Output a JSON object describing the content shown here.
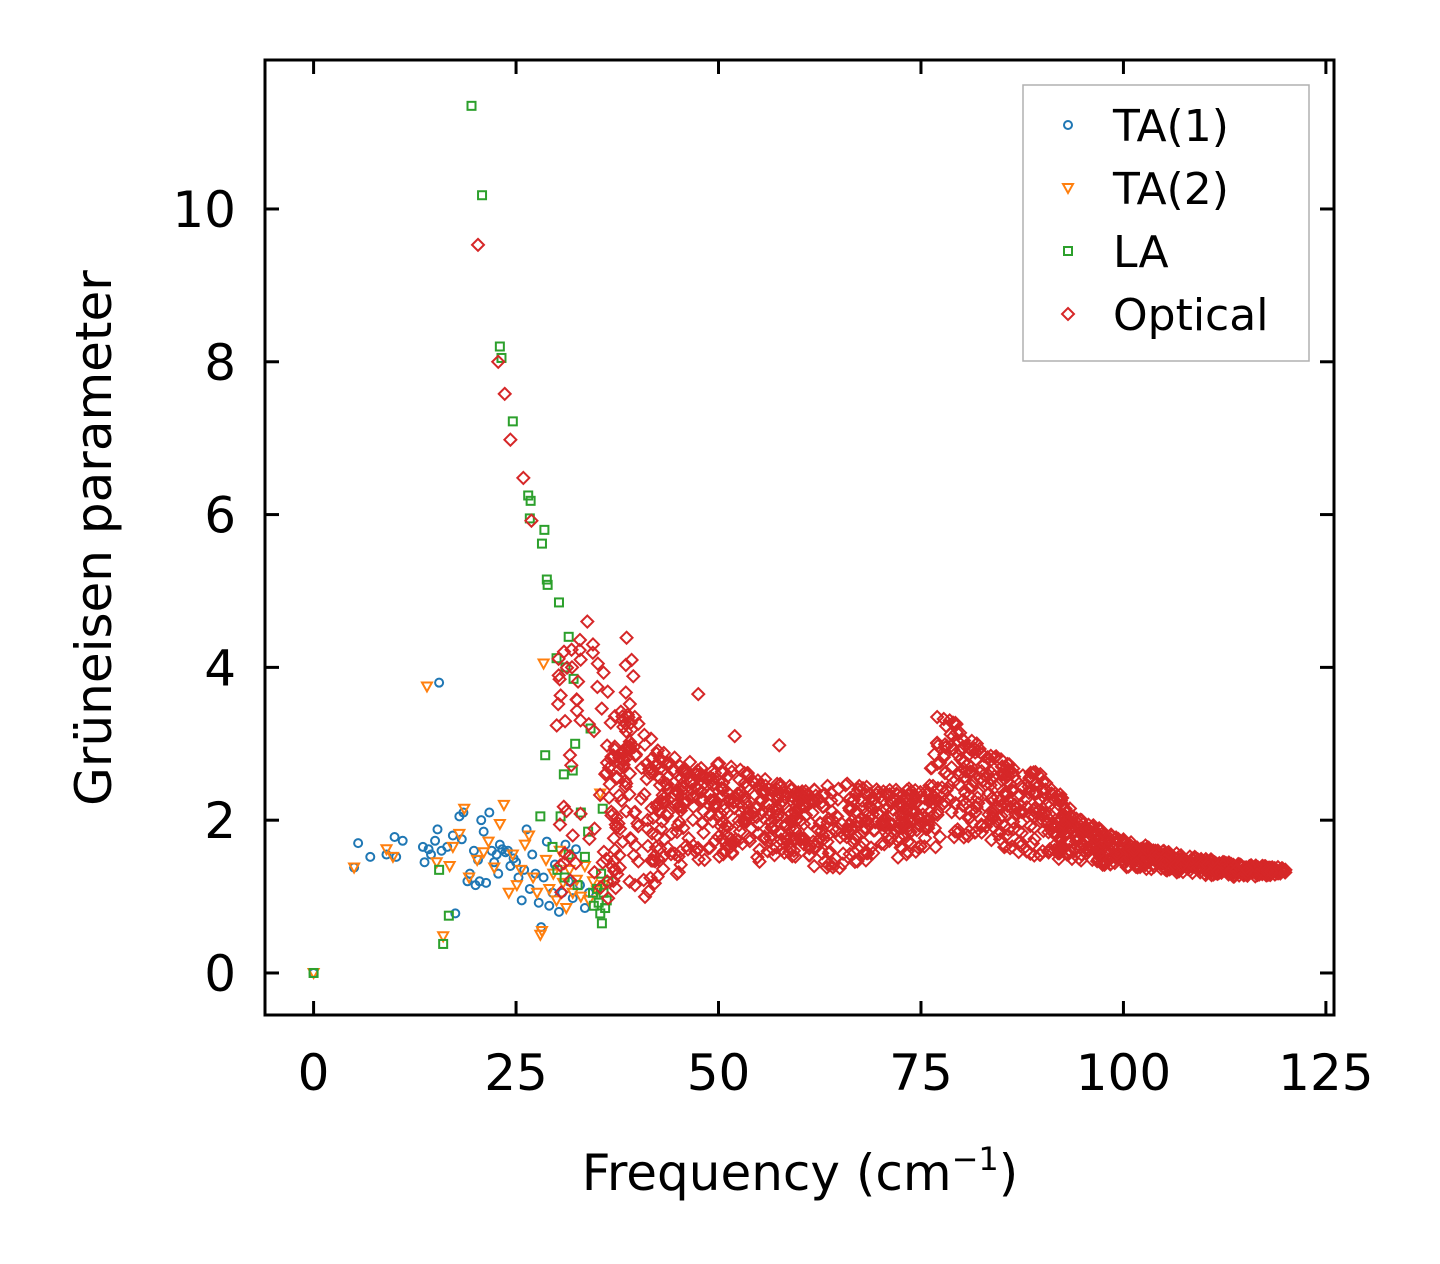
{
  "chart_data": {
    "type": "scatter",
    "title": "",
    "xlabel": "Frequency (cm",
    "xlabel_sup": "−1",
    "xlabel_close": ")",
    "ylabel": "Grüneisen parameter",
    "xlim": [
      -6,
      126
    ],
    "ylim": [
      -0.55,
      11.95
    ],
    "xticks": [
      0,
      25,
      50,
      75,
      100,
      125
    ],
    "xtick_labels": [
      "0",
      "25",
      "50",
      "75",
      "100",
      "125"
    ],
    "yticks": [
      0,
      2,
      4,
      6,
      8,
      10
    ],
    "ytick_labels": [
      "0",
      "2",
      "4",
      "6",
      "8",
      "10"
    ],
    "grid": false,
    "legend_position": "top-right",
    "series": [
      {
        "name": "TA(1)",
        "marker": "circle",
        "color": "#1f77b4",
        "points": [
          [
            0,
            0
          ],
          [
            5,
            1.38
          ],
          [
            5.5,
            1.7
          ],
          [
            7,
            1.52
          ],
          [
            9,
            1.55
          ],
          [
            10,
            1.78
          ],
          [
            11,
            1.73
          ],
          [
            10.2,
            1.52
          ],
          [
            13.5,
            1.65
          ],
          [
            13.7,
            1.45
          ],
          [
            14.2,
            1.62
          ],
          [
            14.5,
            1.55
          ],
          [
            15,
            1.73
          ],
          [
            15.3,
            1.88
          ],
          [
            15.5,
            3.8
          ],
          [
            15.8,
            1.6
          ],
          [
            16.5,
            1.65
          ],
          [
            17.2,
            1.8
          ],
          [
            17.5,
            0.78
          ],
          [
            18,
            2.05
          ],
          [
            18.3,
            1.75
          ],
          [
            18.5,
            2.1
          ],
          [
            19,
            1.2
          ],
          [
            19.3,
            1.3
          ],
          [
            19.8,
            1.6
          ],
          [
            20,
            1.15
          ],
          [
            20.3,
            1.48
          ],
          [
            20.5,
            1.2
          ],
          [
            20.7,
            2.0
          ],
          [
            21,
            1.85
          ],
          [
            21.3,
            1.18
          ],
          [
            21.7,
            2.1
          ],
          [
            22,
            1.6
          ],
          [
            22.3,
            1.45
          ],
          [
            22.6,
            1.55
          ],
          [
            22.8,
            1.3
          ],
          [
            23,
            1.68
          ],
          [
            23.3,
            1.62
          ],
          [
            23.7,
            1.58
          ],
          [
            24,
            1.6
          ],
          [
            24.3,
            1.4
          ],
          [
            24.7,
            1.5
          ],
          [
            25,
            1.45
          ],
          [
            25.3,
            1.25
          ],
          [
            25.7,
            0.95
          ],
          [
            26,
            1.35
          ],
          [
            26.3,
            1.88
          ],
          [
            26.7,
            1.1
          ],
          [
            27,
            1.55
          ],
          [
            27.4,
            1.3
          ],
          [
            27.8,
            0.92
          ],
          [
            28.1,
            0.6
          ],
          [
            28.4,
            1.25
          ],
          [
            28.8,
            1.72
          ],
          [
            29.1,
            0.88
          ],
          [
            29.5,
            1.05
          ],
          [
            29.8,
            1.42
          ],
          [
            30.3,
            0.8
          ],
          [
            30.7,
            1.05
          ],
          [
            31.1,
            1.68
          ],
          [
            31.5,
            1.2
          ],
          [
            32,
            0.98
          ],
          [
            32.4,
            1.62
          ],
          [
            32.9,
            1.15
          ],
          [
            33.5,
            0.85
          ],
          [
            34,
            1.05
          ]
        ]
      },
      {
        "name": "TA(2)",
        "marker": "triangle-down",
        "color": "#ff7f0e",
        "points": [
          [
            0,
            0
          ],
          [
            5,
            1.38
          ],
          [
            9,
            1.62
          ],
          [
            9.8,
            1.52
          ],
          [
            14,
            3.75
          ],
          [
            15.2,
            1.45
          ],
          [
            16,
            0.48
          ],
          [
            16.8,
            1.4
          ],
          [
            17.2,
            1.65
          ],
          [
            18,
            1.82
          ],
          [
            18.6,
            2.15
          ],
          [
            19.2,
            1.25
          ],
          [
            20.2,
            1.48
          ],
          [
            21,
            1.58
          ],
          [
            21.6,
            1.72
          ],
          [
            22.3,
            1.38
          ],
          [
            23,
            1.95
          ],
          [
            23.5,
            2.2
          ],
          [
            24.1,
            1.05
          ],
          [
            24.6,
            1.55
          ],
          [
            25.1,
            1.15
          ],
          [
            25.6,
            1.35
          ],
          [
            26.1,
            1.68
          ],
          [
            26.6,
            1.8
          ],
          [
            27.1,
            1.25
          ],
          [
            27.6,
            1.05
          ],
          [
            28,
            0.5
          ],
          [
            28.2,
            0.55
          ],
          [
            28.4,
            4.05
          ],
          [
            28.7,
            1.48
          ],
          [
            29.1,
            1.1
          ],
          [
            29.6,
            1.3
          ],
          [
            30,
            0.95
          ],
          [
            30.4,
            1.6
          ],
          [
            30.8,
            1.18
          ],
          [
            31.2,
            0.85
          ],
          [
            31.6,
            1.35
          ],
          [
            32,
            1.05
          ],
          [
            32.5,
            1.22
          ],
          [
            33,
            1.0
          ],
          [
            33.5,
            1.4
          ],
          [
            34,
            0.95
          ],
          [
            34.5,
            1.2
          ],
          [
            35,
            1.08
          ],
          [
            35.4,
            2.35
          ],
          [
            35.8,
            1.15
          ]
        ]
      },
      {
        "name": "LA",
        "marker": "square",
        "color": "#2ca02c",
        "points": [
          [
            0,
            0
          ],
          [
            15.5,
            1.35
          ],
          [
            16,
            0.38
          ],
          [
            16.7,
            0.75
          ],
          [
            19.5,
            11.35
          ],
          [
            20.8,
            10.18
          ],
          [
            23,
            8.2
          ],
          [
            23.2,
            8.05
          ],
          [
            24.6,
            7.22
          ],
          [
            26.5,
            6.25
          ],
          [
            26.8,
            6.18
          ],
          [
            26.7,
            5.95
          ],
          [
            28.2,
            5.62
          ],
          [
            28.5,
            5.8
          ],
          [
            28.8,
            5.15
          ],
          [
            28.9,
            5.08
          ],
          [
            30,
            4.12
          ],
          [
            30.3,
            4.85
          ],
          [
            31.1,
            4.0
          ],
          [
            31.5,
            4.4
          ],
          [
            32.1,
            3.85
          ],
          [
            28.6,
            2.85
          ],
          [
            32.3,
            3.0
          ],
          [
            32,
            2.65
          ],
          [
            30.9,
            2.6
          ],
          [
            34.2,
            3.2
          ],
          [
            33.9,
            1.85
          ],
          [
            28,
            2.05
          ],
          [
            30.5,
            2.05
          ],
          [
            33,
            2.1
          ],
          [
            35.7,
            2.15
          ],
          [
            29.5,
            1.65
          ],
          [
            31.5,
            1.55
          ],
          [
            33.5,
            1.52
          ],
          [
            35.5,
            1.3
          ],
          [
            30.1,
            1.35
          ],
          [
            31,
            1.25
          ],
          [
            32.6,
            1.15
          ],
          [
            34.5,
            1.05
          ],
          [
            35.8,
            1.05
          ],
          [
            35.2,
            0.92
          ],
          [
            36.2,
            0.95
          ],
          [
            35.4,
            0.78
          ],
          [
            35.6,
            0.65
          ],
          [
            36,
            0.85
          ],
          [
            36.4,
            1.2
          ],
          [
            35,
            1.1
          ],
          [
            34.6,
            0.88
          ]
        ]
      },
      {
        "name": "Optical",
        "marker": "diamond",
        "color": "#d62728",
        "points": [],
        "note": "Optical branch: ~1700 points spanning 20–120 cm⁻¹, funneling from 9.53 at 20.3 cm⁻¹ to a broad band between ~1 and ~3.4, peak band ≈3.4 near 77–80 cm⁻¹, converging to ≈1.35 at 120 cm⁻¹",
        "anchor_points": [
          [
            20.3,
            9.53
          ],
          [
            22.8,
            8.0
          ],
          [
            23.6,
            7.58
          ],
          [
            24.3,
            6.98
          ],
          [
            25.9,
            6.48
          ],
          [
            26.9,
            5.92
          ],
          [
            30.2,
            3.52
          ],
          [
            33.8,
            4.6
          ],
          [
            34.5,
            4.3
          ],
          [
            47.5,
            3.65
          ],
          [
            52,
            3.1
          ],
          [
            57.5,
            2.98
          ],
          [
            77,
            3.35
          ],
          [
            79,
            3.1
          ],
          [
            85,
            2.7
          ],
          [
            90,
            2.4
          ],
          [
            95,
            1.95
          ],
          [
            100,
            1.72
          ],
          [
            105,
            1.55
          ],
          [
            110,
            1.45
          ],
          [
            115,
            1.38
          ],
          [
            120,
            1.35
          ]
        ]
      }
    ]
  }
}
